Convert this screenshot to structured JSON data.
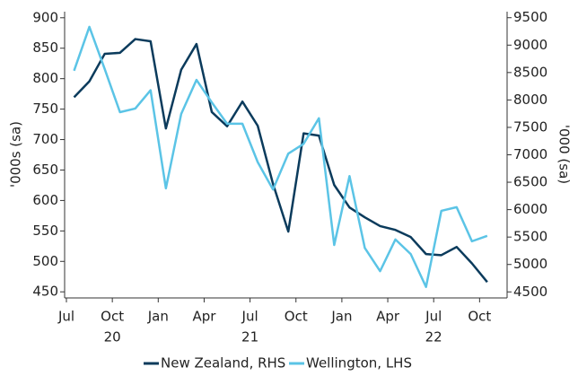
{
  "chart_data": {
    "type": "line",
    "x": [
      "2020-07",
      "2020-08",
      "2020-09",
      "2020-10",
      "2020-11",
      "2020-12",
      "2021-01",
      "2021-02",
      "2021-03",
      "2021-04",
      "2021-05",
      "2021-06",
      "2021-07",
      "2021-08",
      "2021-09",
      "2021-10",
      "2021-11",
      "2021-12",
      "2022-01",
      "2022-02",
      "2022-03",
      "2022-04",
      "2022-05",
      "2022-06",
      "2022-07",
      "2022-08",
      "2022-09",
      "2022-10"
    ],
    "xticks": [
      {
        "value": "2020-07",
        "label": "Jul"
      },
      {
        "value": "2020-10",
        "label": "Oct"
      },
      {
        "value": "2021-01",
        "label": "Jan"
      },
      {
        "value": "2021-04",
        "label": "Apr"
      },
      {
        "value": "2021-07",
        "label": "Jul"
      },
      {
        "value": "2021-10",
        "label": "Oct"
      },
      {
        "value": "2022-01",
        "label": "Jan"
      },
      {
        "value": "2022-04",
        "label": "Apr"
      },
      {
        "value": "2022-07",
        "label": "Jul"
      },
      {
        "value": "2022-10",
        "label": "Oct"
      }
    ],
    "year_labels": [
      {
        "value": "2020-10",
        "label": "20"
      },
      {
        "value": "2021-07",
        "label": "21"
      },
      {
        "value": "2022-07",
        "label": "22"
      }
    ],
    "ylabel": "'000s (sa)",
    "y2label": "'000 (sa)",
    "ylim": [
      440,
      910
    ],
    "yticks": [
      450,
      500,
      550,
      600,
      650,
      700,
      750,
      800,
      850,
      900
    ],
    "y2lim": [
      4390,
      9610
    ],
    "y2ticks": [
      4500,
      5000,
      5500,
      6000,
      6500,
      7000,
      7500,
      8000,
      8500,
      9000,
      9500
    ],
    "series": [
      {
        "name": "New Zealand, RHS",
        "color": "#0b3b5c",
        "axis": "y2",
        "values": [
          8050,
          8340,
          8840,
          8860,
          9110,
          9070,
          7480,
          8550,
          9020,
          7780,
          7520,
          7970,
          7530,
          6470,
          5600,
          7390,
          7350,
          6450,
          6040,
          5860,
          5700,
          5630,
          5500,
          5190,
          5170,
          5320,
          5020,
          4680
        ]
      },
      {
        "name": "Wellington, LHS",
        "color": "#5bc4e6",
        "values": [
          813,
          885,
          816,
          745,
          751,
          781,
          620,
          742,
          798,
          761,
          726,
          726,
          663,
          618,
          677,
          693,
          735,
          527,
          640,
          522,
          484,
          536,
          512,
          458,
          583,
          589,
          533,
          542
        ]
      }
    ],
    "legend": "bottom"
  }
}
